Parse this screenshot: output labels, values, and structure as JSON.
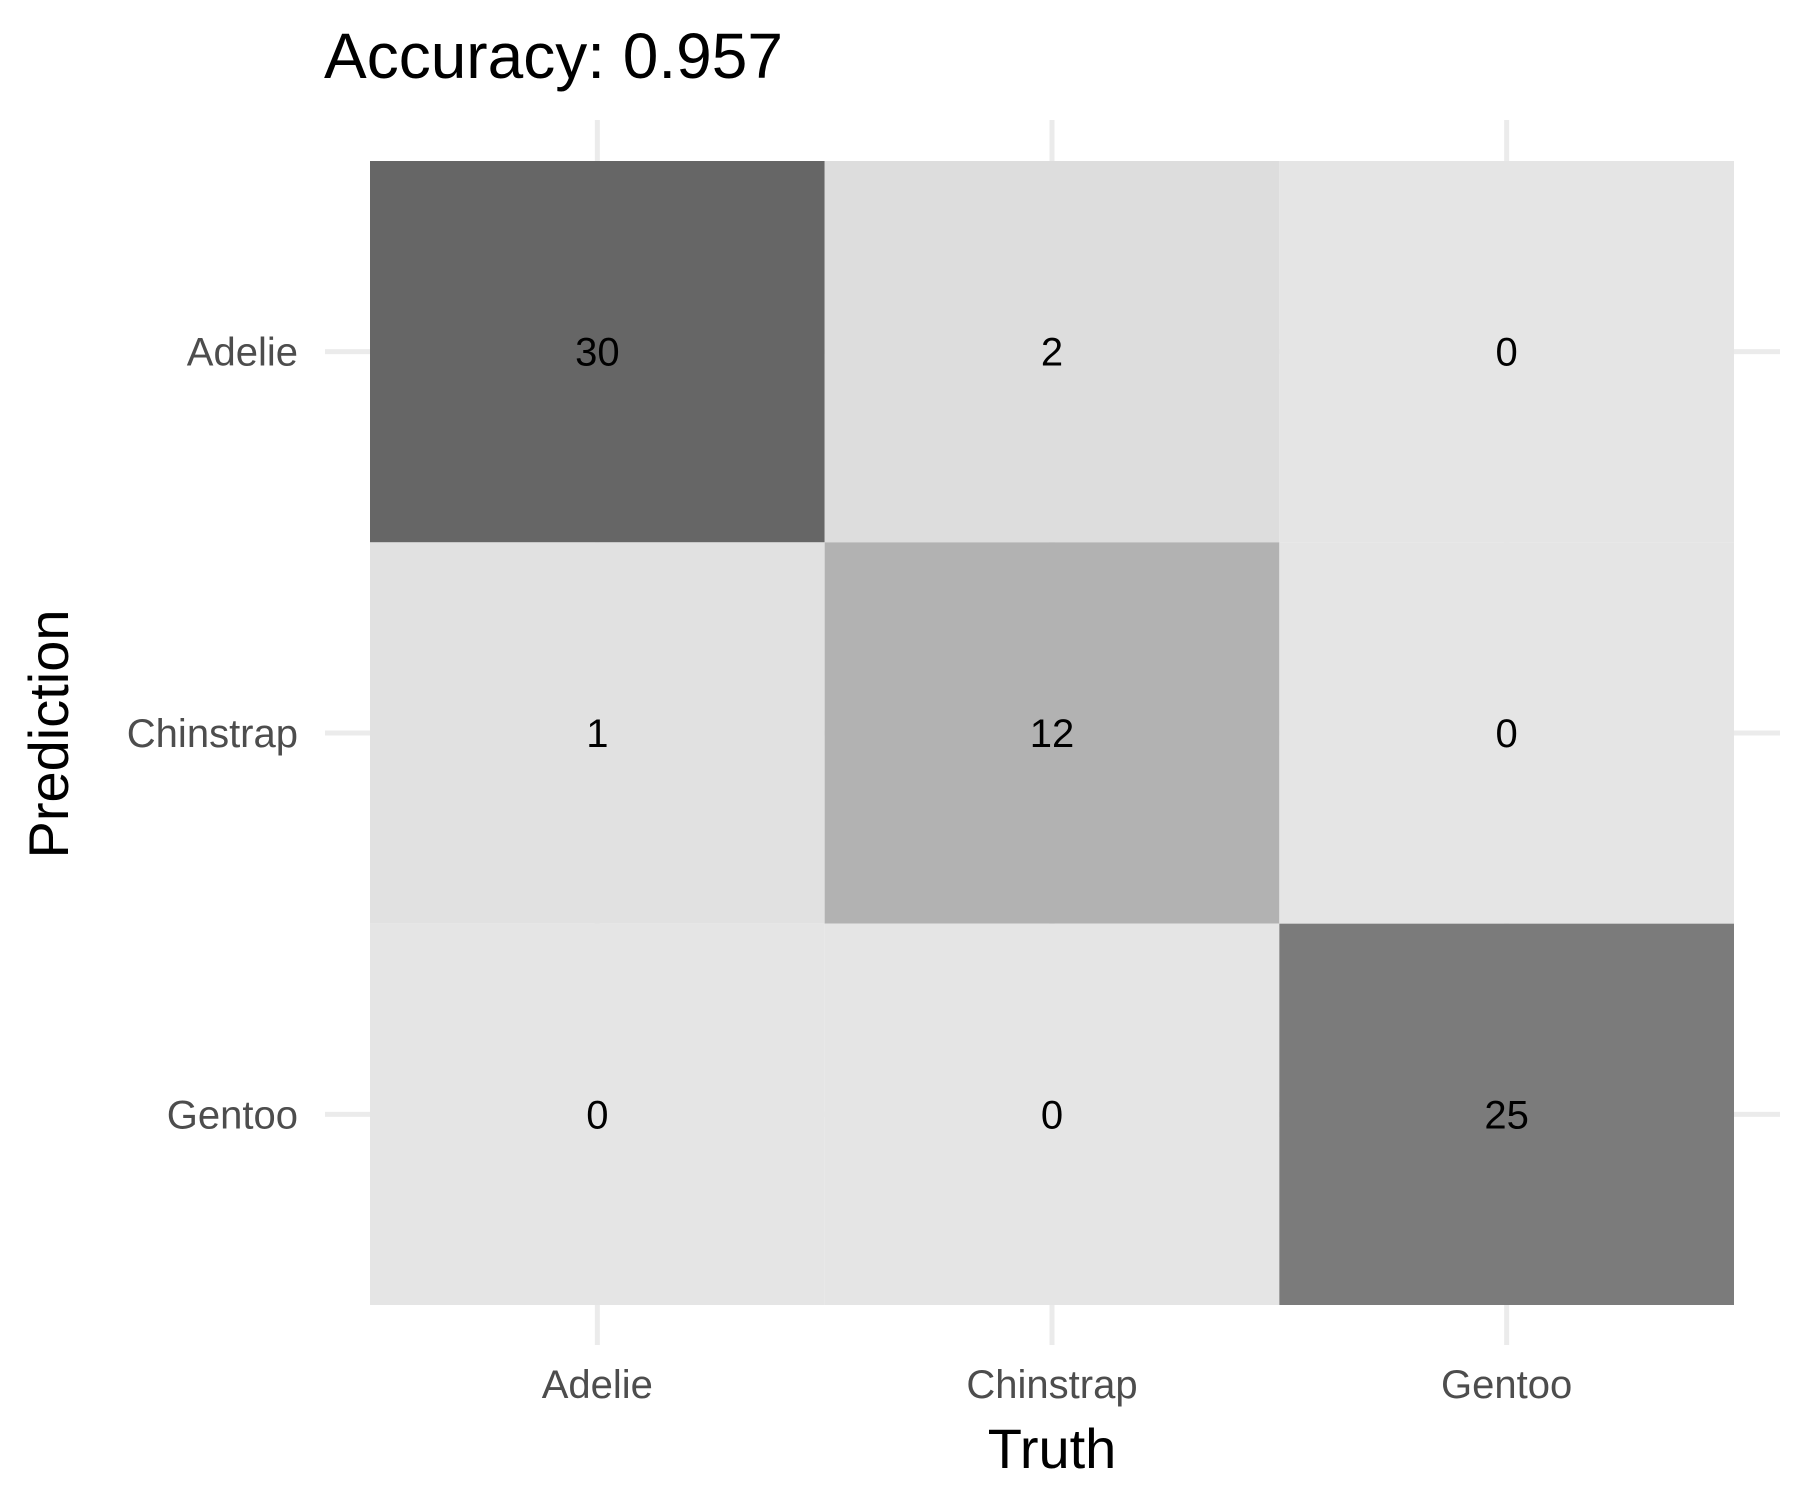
{
  "chart_data": {
    "type": "heatmap",
    "title": "Accuracy: 0.957",
    "xlabel": "Truth",
    "ylabel": "Prediction",
    "x_categories": [
      "Adelie",
      "Chinstrap",
      "Gentoo"
    ],
    "y_categories": [
      "Adelie",
      "Chinstrap",
      "Gentoo"
    ],
    "matrix": [
      [
        30,
        2,
        0
      ],
      [
        1,
        12,
        0
      ],
      [
        0,
        0,
        25
      ]
    ],
    "color_scale": {
      "low": "#e5e5e5",
      "high": "#666666"
    },
    "grid": true,
    "legend": "none"
  }
}
